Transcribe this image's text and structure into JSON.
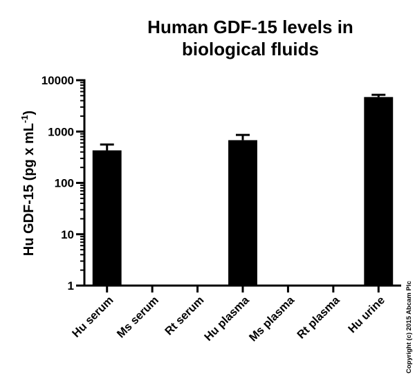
{
  "chart_data": {
    "type": "bar",
    "title_lines": [
      "Human GDF-15 levels in",
      "biological fluids"
    ],
    "ylabel": {
      "main": "Hu GDF-15 (pg x mL",
      "superscript": "-1",
      "suffix": ")"
    },
    "xlabel": "",
    "yscale": "log",
    "ylim": [
      1,
      10000
    ],
    "yticks": [
      1,
      10,
      100,
      1000,
      10000
    ],
    "ytick_labels": [
      "1",
      "10",
      "100",
      "1000",
      "10000"
    ],
    "categories": [
      "Hu serum",
      "Ms serum",
      "Rt serum",
      "Hu plasma",
      "Ms plasma",
      "Rt plasma",
      "Hu urine"
    ],
    "values": [
      430,
      null,
      null,
      680,
      null,
      null,
      4700
    ],
    "error_upper": [
      560,
      null,
      null,
      860,
      null,
      null,
      5200
    ],
    "bar_color": "#000000",
    "grid": false,
    "legend": "none"
  },
  "copyright": "Copyright (c) 2015 Abcam Plc"
}
